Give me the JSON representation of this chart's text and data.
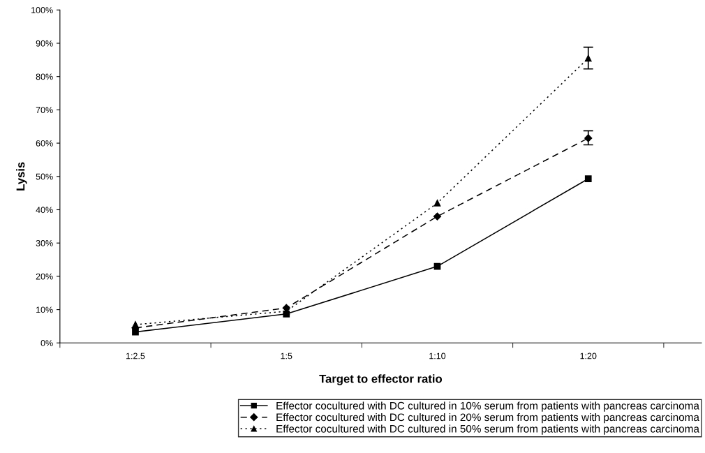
{
  "chart_data": {
    "type": "line",
    "xlabel": "Target to effector ratio",
    "ylabel": "Lysis",
    "categories": [
      "1:2.5",
      "1:5",
      "1:10",
      "1:20"
    ],
    "ylim": [
      0,
      100
    ],
    "yticks": [
      {
        "value": 0,
        "label": "0%"
      },
      {
        "value": 10,
        "label": "10%"
      },
      {
        "value": 20,
        "label": "20%"
      },
      {
        "value": 30,
        "label": "30%"
      },
      {
        "value": 40,
        "label": "40%"
      },
      {
        "value": 50,
        "label": "50%"
      },
      {
        "value": 60,
        "label": "60%"
      },
      {
        "value": 70,
        "label": "70%"
      },
      {
        "value": 80,
        "label": "80%"
      },
      {
        "value": 90,
        "label": "90%"
      },
      {
        "value": 100,
        "label": "100%"
      }
    ],
    "grid": false,
    "legend": "bottom",
    "series": [
      {
        "name": "Effector cocultured with DC cultured in 10% serum from patients with pancreas carcinoma",
        "color": "#000000",
        "marker": "square",
        "line_style": "solid",
        "values": [
          3.3,
          8.7,
          23,
          49.3
        ]
      },
      {
        "name": "Effector cocultured with DC cultured in 20% serum from patients with pancreas carcinoma",
        "color": "#000000",
        "marker": "diamond",
        "line_style": "dashed",
        "values": [
          4.5,
          10.5,
          38,
          61.5
        ],
        "errors": [
          null,
          null,
          null,
          [
            59.5,
            63.7
          ]
        ]
      },
      {
        "name": "Effector cocultured with DC cultured in 50% serum from patients with pancreas carcinoma",
        "color": "#000000",
        "marker": "triangle",
        "line_style": "dotted",
        "values": [
          5.5,
          9.5,
          42,
          85.5
        ],
        "errors": [
          null,
          null,
          null,
          [
            82.3,
            88.8
          ]
        ]
      }
    ]
  }
}
